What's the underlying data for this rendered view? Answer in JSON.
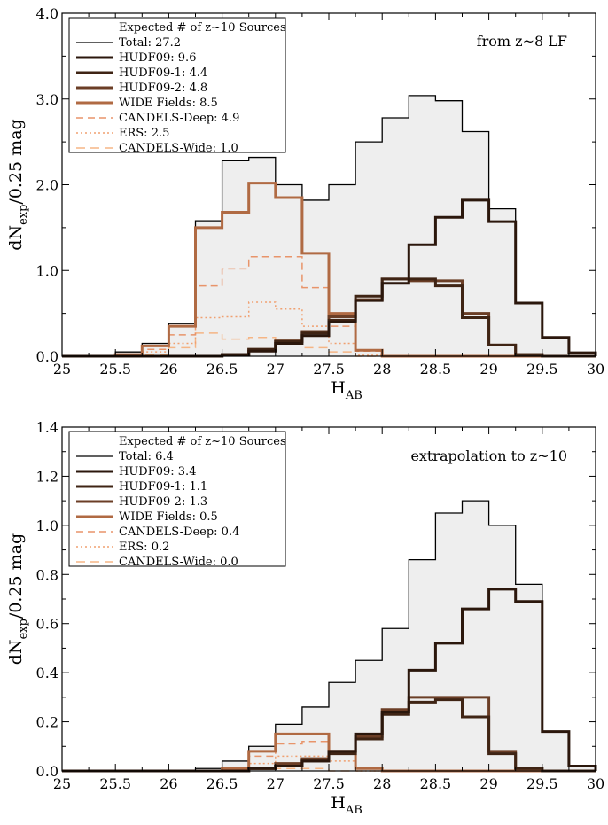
{
  "colors": {
    "total_line": "#000000",
    "total_fill": "#eeeeee",
    "hudf09": "#2b170c",
    "hudf09_1": "#3f2414",
    "hudf09_2": "#6b3e26",
    "wide": "#b06a43",
    "candels_deep": "#e8946a",
    "ers": "#f0a070",
    "candels_wide": "#f5b585"
  },
  "chart_data": [
    {
      "type": "histogram-step",
      "annotation": "from z~8 LF",
      "xlabel": "H",
      "xlabel_sub": "AB",
      "ylabel_main": "dN",
      "ylabel_sub": "exp",
      "ylabel_rest": "/0.25 mag",
      "xlim": [
        25,
        30
      ],
      "ylim": [
        0,
        4
      ],
      "xticks": [
        "25",
        "25.5",
        "26",
        "26.5",
        "27",
        "27.5",
        "28",
        "28.5",
        "29",
        "29.5",
        "30"
      ],
      "xtick_values": [
        25,
        25.5,
        26,
        26.5,
        27,
        27.5,
        28,
        28.5,
        29,
        29.5,
        30
      ],
      "yticks": [
        "0.0",
        "1.0",
        "2.0",
        "3.0",
        "4.0"
      ],
      "ytick_values": [
        0,
        1,
        2,
        3,
        4
      ],
      "bin_edges": [
        25,
        25.25,
        25.5,
        25.75,
        26,
        26.25,
        26.5,
        26.75,
        27,
        27.25,
        27.5,
        27.75,
        28,
        28.25,
        28.5,
        28.75,
        29,
        29.25,
        29.5,
        29.75,
        30
      ],
      "legend": {
        "title": "Expected # of z~10 Sources",
        "entries": [
          {
            "label": "Total: 27.2",
            "key": "total"
          },
          {
            "label": "HUDF09: 9.6",
            "key": "hudf09"
          },
          {
            "label": "HUDF09-1: 4.4",
            "key": "hudf09_1"
          },
          {
            "label": "HUDF09-2: 4.8",
            "key": "hudf09_2"
          },
          {
            "label": "WIDE Fields: 8.5",
            "key": "wide"
          },
          {
            "label": "CANDELS-Deep: 4.9",
            "key": "candels_deep"
          },
          {
            "label": "ERS: 2.5",
            "key": "ers"
          },
          {
            "label": "CANDELS-Wide: 1.0",
            "key": "candels_wide"
          }
        ]
      },
      "series": [
        {
          "name": "Total",
          "key": "total",
          "values": [
            0.0,
            0.0,
            0.05,
            0.15,
            0.38,
            1.58,
            2.28,
            2.32,
            2.0,
            1.82,
            2.0,
            2.5,
            2.78,
            3.04,
            2.98,
            2.62,
            1.72,
            0.62,
            0.22,
            0.04
          ]
        },
        {
          "name": "HUDF09",
          "key": "hudf09",
          "values": [
            0.0,
            0.0,
            0.0,
            0.0,
            0.0,
            0.0,
            0.02,
            0.06,
            0.15,
            0.24,
            0.4,
            0.65,
            0.85,
            1.3,
            1.62,
            1.82,
            1.57,
            0.62,
            0.22,
            0.04
          ]
        },
        {
          "name": "HUDF09-1",
          "key": "hudf09_1",
          "values": [
            0.0,
            0.0,
            0.0,
            0.0,
            0.0,
            0.0,
            0.02,
            0.08,
            0.17,
            0.27,
            0.42,
            0.7,
            0.9,
            0.9,
            0.82,
            0.45,
            0.13,
            0.02,
            0.0,
            0.0
          ]
        },
        {
          "name": "HUDF09-2",
          "key": "hudf09_2",
          "values": [
            0.0,
            0.0,
            0.0,
            0.0,
            0.0,
            0.0,
            0.02,
            0.08,
            0.18,
            0.29,
            0.46,
            0.66,
            0.9,
            0.88,
            0.88,
            0.5,
            0.13,
            0.02,
            0.0,
            0.0
          ]
        },
        {
          "name": "WIDE Fields",
          "key": "wide",
          "values": [
            0.0,
            0.0,
            0.02,
            0.12,
            0.35,
            1.5,
            1.68,
            2.02,
            1.85,
            1.2,
            0.5,
            0.07,
            0.0,
            0.0,
            0.0,
            0.0,
            0.0,
            0.0,
            0.0,
            0.0
          ]
        },
        {
          "name": "CANDELS-Deep",
          "key": "candels_deep",
          "values": [
            0.0,
            0.0,
            0.02,
            0.08,
            0.25,
            0.82,
            1.02,
            1.16,
            1.16,
            0.8,
            0.35,
            0.06,
            0.0,
            0.0,
            0.0,
            0.0,
            0.0,
            0.0,
            0.0,
            0.0
          ]
        },
        {
          "name": "ERS",
          "key": "ers",
          "values": [
            0.0,
            0.0,
            0.01,
            0.05,
            0.15,
            0.45,
            0.46,
            0.63,
            0.55,
            0.35,
            0.15,
            0.01,
            0.0,
            0.0,
            0.0,
            0.0,
            0.0,
            0.0,
            0.0,
            0.0
          ]
        },
        {
          "name": "CANDELS-Wide",
          "key": "candels_wide",
          "values": [
            0.0,
            0.0,
            0.0,
            0.02,
            0.1,
            0.27,
            0.2,
            0.22,
            0.18,
            0.1,
            0.05,
            0.0,
            0.0,
            0.0,
            0.0,
            0.0,
            0.0,
            0.0,
            0.0,
            0.0
          ]
        }
      ]
    },
    {
      "type": "histogram-step",
      "annotation": "extrapolation to z~10",
      "xlabel": "H",
      "xlabel_sub": "AB",
      "ylabel_main": "dN",
      "ylabel_sub": "exp",
      "ylabel_rest": "/0.25 mag",
      "xlim": [
        25,
        30
      ],
      "ylim": [
        0,
        1.4
      ],
      "xticks": [
        "25",
        "25.5",
        "26",
        "26.5",
        "27",
        "27.5",
        "28",
        "28.5",
        "29",
        "29.5",
        "30"
      ],
      "xtick_values": [
        25,
        25.5,
        26,
        26.5,
        27,
        27.5,
        28,
        28.5,
        29,
        29.5,
        30
      ],
      "yticks": [
        "0.0",
        "0.2",
        "0.4",
        "0.6",
        "0.8",
        "1.0",
        "1.2",
        "1.4"
      ],
      "ytick_values": [
        0,
        0.2,
        0.4,
        0.6,
        0.8,
        1.0,
        1.2,
        1.4
      ],
      "bin_edges": [
        25,
        25.25,
        25.5,
        25.75,
        26,
        26.25,
        26.5,
        26.75,
        27,
        27.25,
        27.5,
        27.75,
        28,
        28.25,
        28.5,
        28.75,
        29,
        29.25,
        29.5,
        29.75,
        30
      ],
      "legend": {
        "title": "Expected # of z~10 Sources",
        "entries": [
          {
            "label": "Total: 6.4",
            "key": "total"
          },
          {
            "label": "HUDF09: 3.4",
            "key": "hudf09"
          },
          {
            "label": "HUDF09-1: 1.1",
            "key": "hudf09_1"
          },
          {
            "label": "HUDF09-2: 1.3",
            "key": "hudf09_2"
          },
          {
            "label": "WIDE Fields: 0.5",
            "key": "wide"
          },
          {
            "label": "CANDELS-Deep: 0.4",
            "key": "candels_deep"
          },
          {
            "label": "ERS: 0.2",
            "key": "ers"
          },
          {
            "label": "CANDELS-Wide: 0.0",
            "key": "candels_wide"
          }
        ]
      },
      "series": [
        {
          "name": "Total",
          "key": "total",
          "values": [
            0.0,
            0.0,
            0.0,
            0.0,
            0.0,
            0.01,
            0.04,
            0.1,
            0.19,
            0.26,
            0.36,
            0.45,
            0.58,
            0.86,
            1.05,
            1.1,
            1.0,
            0.76,
            0.16,
            0.02
          ]
        },
        {
          "name": "HUDF09",
          "key": "hudf09",
          "values": [
            0.0,
            0.0,
            0.0,
            0.0,
            0.0,
            0.0,
            0.0,
            0.01,
            0.02,
            0.04,
            0.08,
            0.15,
            0.24,
            0.41,
            0.52,
            0.66,
            0.74,
            0.69,
            0.16,
            0.02
          ]
        },
        {
          "name": "HUDF09-1",
          "key": "hudf09_1",
          "values": [
            0.0,
            0.0,
            0.0,
            0.0,
            0.0,
            0.0,
            0.0,
            0.01,
            0.02,
            0.04,
            0.07,
            0.13,
            0.23,
            0.28,
            0.29,
            0.22,
            0.07,
            0.01,
            0.0,
            0.0
          ]
        },
        {
          "name": "HUDF09-2",
          "key": "hudf09_2",
          "values": [
            0.0,
            0.0,
            0.0,
            0.0,
            0.0,
            0.0,
            0.0,
            0.01,
            0.03,
            0.05,
            0.08,
            0.14,
            0.25,
            0.3,
            0.3,
            0.3,
            0.08,
            0.01,
            0.0,
            0.0
          ]
        },
        {
          "name": "WIDE Fields",
          "key": "wide",
          "values": [
            0.0,
            0.0,
            0.0,
            0.0,
            0.0,
            0.0,
            0.01,
            0.08,
            0.15,
            0.15,
            0.08,
            0.01,
            0.0,
            0.0,
            0.0,
            0.0,
            0.0,
            0.0,
            0.0,
            0.0
          ]
        },
        {
          "name": "CANDELS-Deep",
          "key": "candels_deep",
          "values": [
            0.0,
            0.0,
            0.0,
            0.0,
            0.0,
            0.0,
            0.01,
            0.06,
            0.11,
            0.12,
            0.07,
            0.01,
            0.0,
            0.0,
            0.0,
            0.0,
            0.0,
            0.0,
            0.0,
            0.0
          ]
        },
        {
          "name": "ERS",
          "key": "ers",
          "values": [
            0.0,
            0.0,
            0.0,
            0.0,
            0.0,
            0.0,
            0.0,
            0.03,
            0.06,
            0.06,
            0.04,
            0.0,
            0.0,
            0.0,
            0.0,
            0.0,
            0.0,
            0.0,
            0.0,
            0.0
          ]
        },
        {
          "name": "CANDELS-Wide",
          "key": "candels_wide",
          "values": [
            0.0,
            0.0,
            0.0,
            0.0,
            0.0,
            0.0,
            0.0,
            0.01,
            0.01,
            0.01,
            0.0,
            0.0,
            0.0,
            0.0,
            0.0,
            0.0,
            0.0,
            0.0,
            0.0,
            0.0
          ]
        }
      ]
    }
  ]
}
